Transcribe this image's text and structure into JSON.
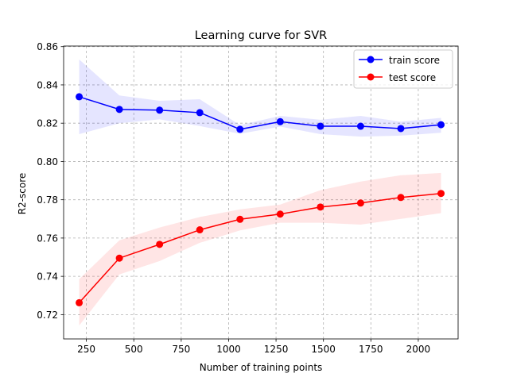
{
  "chart_data": {
    "type": "line",
    "title": "Learning curve for SVR",
    "xlabel": "Number of training points",
    "ylabel": "R2-score",
    "xlim": [
      130,
      2210
    ],
    "ylim": [
      0.7073,
      0.8603
    ],
    "xticks": [
      250,
      500,
      750,
      1000,
      1250,
      1500,
      1750,
      2000
    ],
    "yticks": [
      0.72,
      0.74,
      0.76,
      0.78,
      0.8,
      0.82,
      0.84,
      0.86
    ],
    "ytick_labels": [
      "0.72",
      "0.74",
      "0.76",
      "0.78",
      "0.80",
      "0.82",
      "0.84",
      "0.86"
    ],
    "grid": true,
    "legend_position": "top-right",
    "x": [
      212,
      424,
      636,
      848,
      1060,
      1272,
      1484,
      1696,
      1908,
      2120
    ],
    "series": [
      {
        "name": "train score",
        "color": "#0000ff",
        "band_color": "#0000ff",
        "values": [
          0.8338,
          0.8272,
          0.8268,
          0.8255,
          0.8168,
          0.8208,
          0.8184,
          0.8184,
          0.8172,
          0.8192
        ],
        "lower": [
          0.8143,
          0.82,
          0.822,
          0.8185,
          0.8145,
          0.8182,
          0.8143,
          0.813,
          0.8135,
          0.815
        ],
        "upper": [
          0.8533,
          0.8345,
          0.8317,
          0.8325,
          0.819,
          0.8238,
          0.8218,
          0.8238,
          0.8208,
          0.8228
        ]
      },
      {
        "name": "test score",
        "color": "#ff0000",
        "band_color": "#ff0000",
        "values": [
          0.7262,
          0.7495,
          0.7567,
          0.7643,
          0.7698,
          0.7725,
          0.7762,
          0.7783,
          0.7812,
          0.7833
        ],
        "lower": [
          0.7143,
          0.741,
          0.748,
          0.7575,
          0.764,
          0.768,
          0.768,
          0.767,
          0.77,
          0.773
        ],
        "upper": [
          0.7385,
          0.7588,
          0.7655,
          0.771,
          0.775,
          0.7775,
          0.785,
          0.7895,
          0.7928,
          0.794
        ]
      }
    ]
  }
}
